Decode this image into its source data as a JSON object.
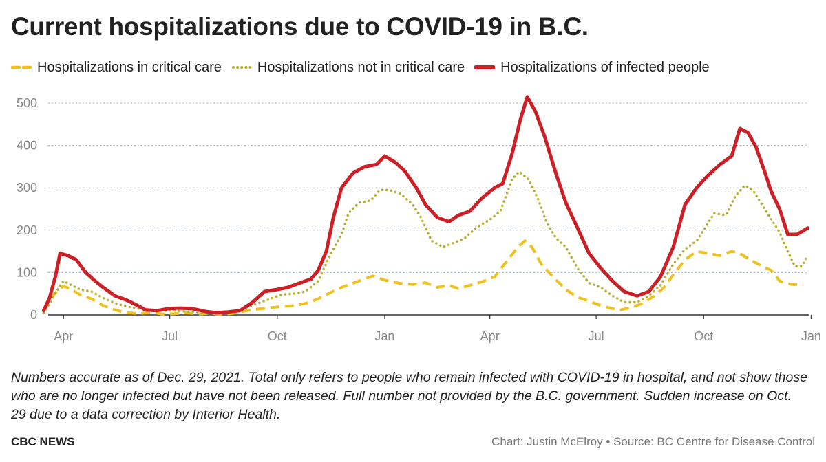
{
  "title": "Current hospitalizations due to COVID-19 in B.C.",
  "legend": [
    {
      "label": "Hospitalizations in critical care",
      "color": "#f0c01f",
      "style": "dashed"
    },
    {
      "label": "Hospitalizations not in critical care",
      "color": "#b5ae30",
      "style": "dotted"
    },
    {
      "label": "Hospitalizations of infected people",
      "color": "#cc1f26",
      "style": "solid"
    }
  ],
  "notes": "Numbers accurate as of Dec. 29, 2021. Total only refers to people who remain infected with COVID-19 in hospital, and not show those who are no longer infected but have not been released. Full number not provided by the B.C. government. Sudden increase on Oct. 29 due to a data correction by Interior Health.",
  "brand": "CBC NEWS",
  "credit": "Chart: Justin McElroy • Source: BC Centre for Disease Control",
  "chart_data": {
    "type": "line",
    "x_axis": {
      "type": "date",
      "min": "2020-03-13",
      "max": "2021-12-30",
      "ticks": [
        {
          "date": "2020-04-01",
          "label": "Apr"
        },
        {
          "date": "2020-07-01",
          "label": "Jul"
        },
        {
          "date": "2020-10-01",
          "label": "Oct"
        },
        {
          "date": "2021-01-01",
          "label": "Jan"
        },
        {
          "date": "2021-04-01",
          "label": "Apr"
        },
        {
          "date": "2021-07-01",
          "label": "Jul"
        },
        {
          "date": "2021-10-01",
          "label": "Oct"
        },
        {
          "date": "2022-01-01",
          "label": "Jan"
        }
      ]
    },
    "y_axis": {
      "min": 0,
      "max": 500,
      "ticks": [
        0,
        100,
        200,
        300,
        400,
        500
      ]
    },
    "grid": "horizontal dotted",
    "series": [
      {
        "name": "Hospitalizations in critical care",
        "color": "#f0c01f",
        "points": [
          [
            "2020-03-15",
            10
          ],
          [
            "2020-03-21",
            40
          ],
          [
            "2020-03-27",
            58
          ],
          [
            "2020-04-01",
            68
          ],
          [
            "2020-04-08",
            60
          ],
          [
            "2020-04-15",
            48
          ],
          [
            "2020-04-25",
            38
          ],
          [
            "2020-05-05",
            22
          ],
          [
            "2020-05-15",
            12
          ],
          [
            "2020-05-25",
            5
          ],
          [
            "2020-06-05",
            3
          ],
          [
            "2020-06-15",
            6
          ],
          [
            "2020-06-25",
            2
          ],
          [
            "2020-07-05",
            3
          ],
          [
            "2020-07-15",
            5
          ],
          [
            "2020-07-25",
            2
          ],
          [
            "2020-08-05",
            4
          ],
          [
            "2020-08-15",
            1
          ],
          [
            "2020-08-25",
            4
          ],
          [
            "2020-09-05",
            10
          ],
          [
            "2020-09-15",
            14
          ],
          [
            "2020-09-25",
            17
          ],
          [
            "2020-10-05",
            20
          ],
          [
            "2020-10-15",
            22
          ],
          [
            "2020-10-25",
            27
          ],
          [
            "2020-11-05",
            38
          ],
          [
            "2020-11-15",
            52
          ],
          [
            "2020-11-25",
            65
          ],
          [
            "2020-12-05",
            75
          ],
          [
            "2020-12-15",
            85
          ],
          [
            "2020-12-22",
            92
          ],
          [
            "2021-01-01",
            82
          ],
          [
            "2021-01-15",
            74
          ],
          [
            "2021-01-25",
            72
          ],
          [
            "2021-02-05",
            76
          ],
          [
            "2021-02-15",
            65
          ],
          [
            "2021-02-25",
            70
          ],
          [
            "2021-03-05",
            62
          ],
          [
            "2021-03-15",
            70
          ],
          [
            "2021-03-25",
            78
          ],
          [
            "2021-04-05",
            90
          ],
          [
            "2021-04-15",
            125
          ],
          [
            "2021-04-25",
            160
          ],
          [
            "2021-05-01",
            175
          ],
          [
            "2021-05-07",
            160
          ],
          [
            "2021-05-15",
            120
          ],
          [
            "2021-05-25",
            90
          ],
          [
            "2021-06-05",
            60
          ],
          [
            "2021-06-15",
            42
          ],
          [
            "2021-06-25",
            32
          ],
          [
            "2021-07-05",
            22
          ],
          [
            "2021-07-15",
            15
          ],
          [
            "2021-07-22",
            12
          ],
          [
            "2021-08-01",
            18
          ],
          [
            "2021-08-10",
            28
          ],
          [
            "2021-08-20",
            45
          ],
          [
            "2021-08-28",
            65
          ],
          [
            "2021-09-05",
            95
          ],
          [
            "2021-09-15",
            130
          ],
          [
            "2021-09-25",
            150
          ],
          [
            "2021-10-05",
            145
          ],
          [
            "2021-10-15",
            140
          ],
          [
            "2021-10-25",
            150
          ],
          [
            "2021-11-01",
            145
          ],
          [
            "2021-11-10",
            130
          ],
          [
            "2021-11-20",
            115
          ],
          [
            "2021-11-28",
            105
          ],
          [
            "2021-12-05",
            80
          ],
          [
            "2021-12-15",
            72
          ],
          [
            "2021-12-25",
            72
          ]
        ]
      },
      {
        "name": "Hospitalizations not in critical care",
        "color": "#b5ae30",
        "points": [
          [
            "2020-03-15",
            5
          ],
          [
            "2020-03-21",
            30
          ],
          [
            "2020-03-27",
            60
          ],
          [
            "2020-04-01",
            80
          ],
          [
            "2020-04-08",
            70
          ],
          [
            "2020-04-15",
            60
          ],
          [
            "2020-04-25",
            55
          ],
          [
            "2020-05-05",
            40
          ],
          [
            "2020-05-15",
            28
          ],
          [
            "2020-05-25",
            20
          ],
          [
            "2020-06-05",
            15
          ],
          [
            "2020-06-15",
            12
          ],
          [
            "2020-06-25",
            10
          ],
          [
            "2020-07-05",
            10
          ],
          [
            "2020-07-15",
            8
          ],
          [
            "2020-07-25",
            6
          ],
          [
            "2020-08-05",
            5
          ],
          [
            "2020-08-15",
            4
          ],
          [
            "2020-08-25",
            8
          ],
          [
            "2020-09-05",
            18
          ],
          [
            "2020-09-15",
            28
          ],
          [
            "2020-09-25",
            38
          ],
          [
            "2020-10-05",
            48
          ],
          [
            "2020-10-15",
            50
          ],
          [
            "2020-10-25",
            55
          ],
          [
            "2020-11-05",
            80
          ],
          [
            "2020-11-15",
            140
          ],
          [
            "2020-11-25",
            190
          ],
          [
            "2020-12-01",
            240
          ],
          [
            "2020-12-10",
            265
          ],
          [
            "2020-12-20",
            270
          ],
          [
            "2020-12-28",
            295
          ],
          [
            "2021-01-05",
            295
          ],
          [
            "2021-01-15",
            285
          ],
          [
            "2021-01-25",
            260
          ],
          [
            "2021-02-01",
            230
          ],
          [
            "2021-02-10",
            175
          ],
          [
            "2021-02-20",
            160
          ],
          [
            "2021-03-01",
            170
          ],
          [
            "2021-03-10",
            180
          ],
          [
            "2021-03-20",
            205
          ],
          [
            "2021-04-01",
            225
          ],
          [
            "2021-04-10",
            245
          ],
          [
            "2021-04-20",
            320
          ],
          [
            "2021-04-26",
            338
          ],
          [
            "2021-05-04",
            320
          ],
          [
            "2021-05-12",
            275
          ],
          [
            "2021-05-20",
            215
          ],
          [
            "2021-05-28",
            180
          ],
          [
            "2021-06-05",
            160
          ],
          [
            "2021-06-15",
            110
          ],
          [
            "2021-06-25",
            75
          ],
          [
            "2021-07-05",
            65
          ],
          [
            "2021-07-15",
            45
          ],
          [
            "2021-07-25",
            30
          ],
          [
            "2021-08-05",
            30
          ],
          [
            "2021-08-15",
            45
          ],
          [
            "2021-08-25",
            70
          ],
          [
            "2021-09-05",
            120
          ],
          [
            "2021-09-15",
            155
          ],
          [
            "2021-09-25",
            175
          ],
          [
            "2021-10-01",
            200
          ],
          [
            "2021-10-10",
            240
          ],
          [
            "2021-10-20",
            235
          ],
          [
            "2021-10-28",
            280
          ],
          [
            "2021-11-05",
            305
          ],
          [
            "2021-11-12",
            295
          ],
          [
            "2021-11-20",
            260
          ],
          [
            "2021-11-28",
            225
          ],
          [
            "2021-12-05",
            195
          ],
          [
            "2021-12-12",
            150
          ],
          [
            "2021-12-18",
            115
          ],
          [
            "2021-12-24",
            115
          ],
          [
            "2021-12-29",
            140
          ]
        ]
      },
      {
        "name": "Hospitalizations of infected people",
        "color": "#cc1f26",
        "points": [
          [
            "2020-03-15",
            10
          ],
          [
            "2020-03-20",
            40
          ],
          [
            "2020-03-25",
            90
          ],
          [
            "2020-03-29",
            145
          ],
          [
            "2020-04-05",
            140
          ],
          [
            "2020-04-12",
            130
          ],
          [
            "2020-04-20",
            100
          ],
          [
            "2020-04-28",
            80
          ],
          [
            "2020-05-05",
            65
          ],
          [
            "2020-05-15",
            45
          ],
          [
            "2020-05-25",
            35
          ],
          [
            "2020-06-05",
            20
          ],
          [
            "2020-06-10",
            12
          ],
          [
            "2020-06-20",
            10
          ],
          [
            "2020-06-30",
            15
          ],
          [
            "2020-07-10",
            16
          ],
          [
            "2020-07-20",
            15
          ],
          [
            "2020-08-01",
            8
          ],
          [
            "2020-08-10",
            5
          ],
          [
            "2020-08-20",
            7
          ],
          [
            "2020-08-30",
            10
          ],
          [
            "2020-09-10",
            30
          ],
          [
            "2020-09-20",
            55
          ],
          [
            "2020-10-01",
            60
          ],
          [
            "2020-10-10",
            65
          ],
          [
            "2020-10-20",
            75
          ],
          [
            "2020-10-30",
            85
          ],
          [
            "2020-11-05",
            105
          ],
          [
            "2020-11-12",
            150
          ],
          [
            "2020-11-18",
            230
          ],
          [
            "2020-11-25",
            300
          ],
          [
            "2020-12-05",
            335
          ],
          [
            "2020-12-15",
            350
          ],
          [
            "2020-12-25",
            355
          ],
          [
            "2021-01-01",
            375
          ],
          [
            "2021-01-10",
            360
          ],
          [
            "2021-01-18",
            340
          ],
          [
            "2021-01-28",
            300
          ],
          [
            "2021-02-05",
            260
          ],
          [
            "2021-02-15",
            230
          ],
          [
            "2021-02-25",
            220
          ],
          [
            "2021-03-05",
            235
          ],
          [
            "2021-03-15",
            245
          ],
          [
            "2021-03-25",
            275
          ],
          [
            "2021-04-05",
            300
          ],
          [
            "2021-04-12",
            310
          ],
          [
            "2021-04-20",
            380
          ],
          [
            "2021-04-27",
            460
          ],
          [
            "2021-05-03",
            515
          ],
          [
            "2021-05-10",
            480
          ],
          [
            "2021-05-18",
            420
          ],
          [
            "2021-05-28",
            330
          ],
          [
            "2021-06-05",
            265
          ],
          [
            "2021-06-15",
            205
          ],
          [
            "2021-06-25",
            145
          ],
          [
            "2021-07-05",
            110
          ],
          [
            "2021-07-15",
            80
          ],
          [
            "2021-07-25",
            55
          ],
          [
            "2021-08-05",
            45
          ],
          [
            "2021-08-15",
            55
          ],
          [
            "2021-08-25",
            90
          ],
          [
            "2021-09-05",
            160
          ],
          [
            "2021-09-15",
            260
          ],
          [
            "2021-09-25",
            300
          ],
          [
            "2021-10-05",
            330
          ],
          [
            "2021-10-15",
            355
          ],
          [
            "2021-10-25",
            375
          ],
          [
            "2021-11-01",
            440
          ],
          [
            "2021-11-08",
            430
          ],
          [
            "2021-11-15",
            395
          ],
          [
            "2021-11-22",
            340
          ],
          [
            "2021-11-28",
            290
          ],
          [
            "2021-12-05",
            250
          ],
          [
            "2021-12-12",
            190
          ],
          [
            "2021-12-20",
            190
          ],
          [
            "2021-12-29",
            205
          ]
        ]
      }
    ]
  }
}
